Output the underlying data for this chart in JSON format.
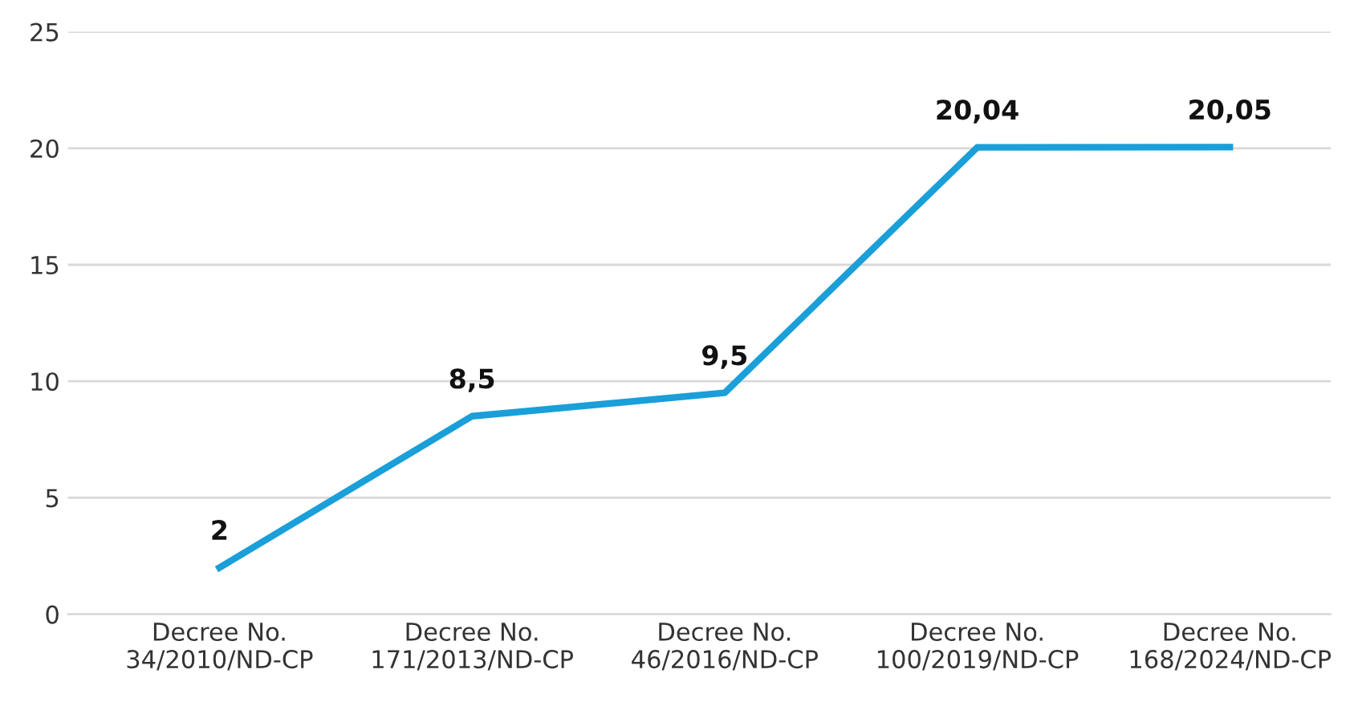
{
  "chart_data": {
    "type": "line",
    "categories": [
      "Decree No.\n34/2010/ND-CP",
      "Decree No.\n171/2013/ND-CP",
      "Decree No.\n46/2016/ND-CP",
      "Decree No.\n100/2019/ND-CP",
      "Decree No.\n168/2024/ND-CP"
    ],
    "series": [
      {
        "color": "#1a9fd9",
        "values": [
          2,
          8.5,
          9.5,
          20.04,
          20.05
        ],
        "value_labels": [
          "2",
          "8,5",
          "9,5",
          "20,04",
          "20,05"
        ]
      }
    ],
    "ylim": [
      0,
      25
    ],
    "yticks": [
      0,
      5,
      10,
      15,
      20,
      25
    ],
    "grid": "y",
    "legend": false,
    "marker": "none",
    "line_style": "solid"
  }
}
